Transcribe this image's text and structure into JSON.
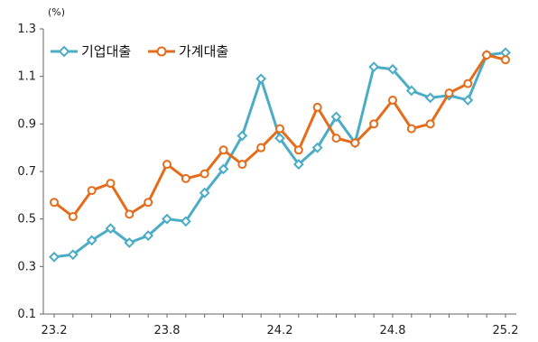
{
  "chart_data": {
    "type": "line",
    "title": "",
    "ylabel_unit": "(%)",
    "xlabel": "",
    "ylim": [
      0.1,
      1.3
    ],
    "y_ticks": [
      "0.1",
      "0.3",
      "0.5",
      "0.7",
      "0.9",
      "1.1",
      "1.3"
    ],
    "y_tick_values": [
      0.1,
      0.3,
      0.5,
      0.7,
      0.9,
      1.1,
      1.3
    ],
    "x": [
      "23.2",
      "23.3",
      "23.4",
      "23.5",
      "23.6",
      "23.7",
      "23.8",
      "23.9",
      "23.10",
      "23.11",
      "23.12",
      "24.1",
      "24.2",
      "24.3",
      "24.4",
      "24.5",
      "24.6",
      "24.7",
      "24.8",
      "24.9",
      "24.10",
      "24.11",
      "24.12",
      "25.1",
      "25.2"
    ],
    "x_tick_labels": [
      "23.2",
      "23.8",
      "24.2",
      "24.8",
      "25.2"
    ],
    "x_tick_indices": [
      0,
      6,
      12,
      18,
      24
    ],
    "grid": false,
    "legend_position": "top-left",
    "series": [
      {
        "name": "기업대출",
        "color": "#4bacc6",
        "marker": "diamond",
        "values": [
          0.34,
          0.35,
          0.41,
          0.46,
          0.4,
          0.43,
          0.5,
          0.49,
          0.61,
          0.71,
          0.85,
          1.09,
          0.84,
          0.73,
          0.8,
          0.93,
          0.82,
          1.14,
          1.13,
          1.04,
          1.01,
          1.02,
          1.0,
          1.19,
          1.2
        ]
      },
      {
        "name": "가계대출",
        "color": "#e46c1a",
        "marker": "circle",
        "values": [
          0.57,
          0.51,
          0.62,
          0.65,
          0.52,
          0.57,
          0.73,
          0.67,
          0.69,
          0.79,
          0.73,
          0.8,
          0.88,
          0.79,
          0.97,
          0.84,
          0.82,
          0.9,
          1.0,
          0.88,
          0.9,
          1.03,
          1.07,
          1.19,
          1.17
        ]
      }
    ]
  }
}
